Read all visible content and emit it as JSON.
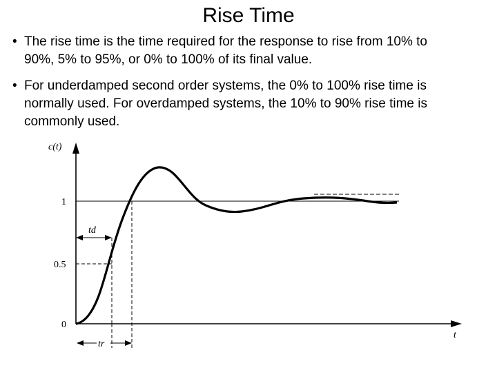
{
  "slide": {
    "title": "Rise Time",
    "bullets": [
      "The rise time is the time required for the response to rise from 10% to 90%, 5% to 95%, or 0% to 100% of its final value.",
      "For underdamped second order systems, the 0% to 100% rise time is normally used. For overdamped systems, the 10% to 90% rise time is commonly used."
    ]
  },
  "figure": {
    "y_axis_label": "c(t)",
    "x_axis_label": "t",
    "y_ticks": [
      "1",
      "0.5",
      "0"
    ],
    "delay_time_label": "td",
    "rise_time_label": "tr"
  }
}
